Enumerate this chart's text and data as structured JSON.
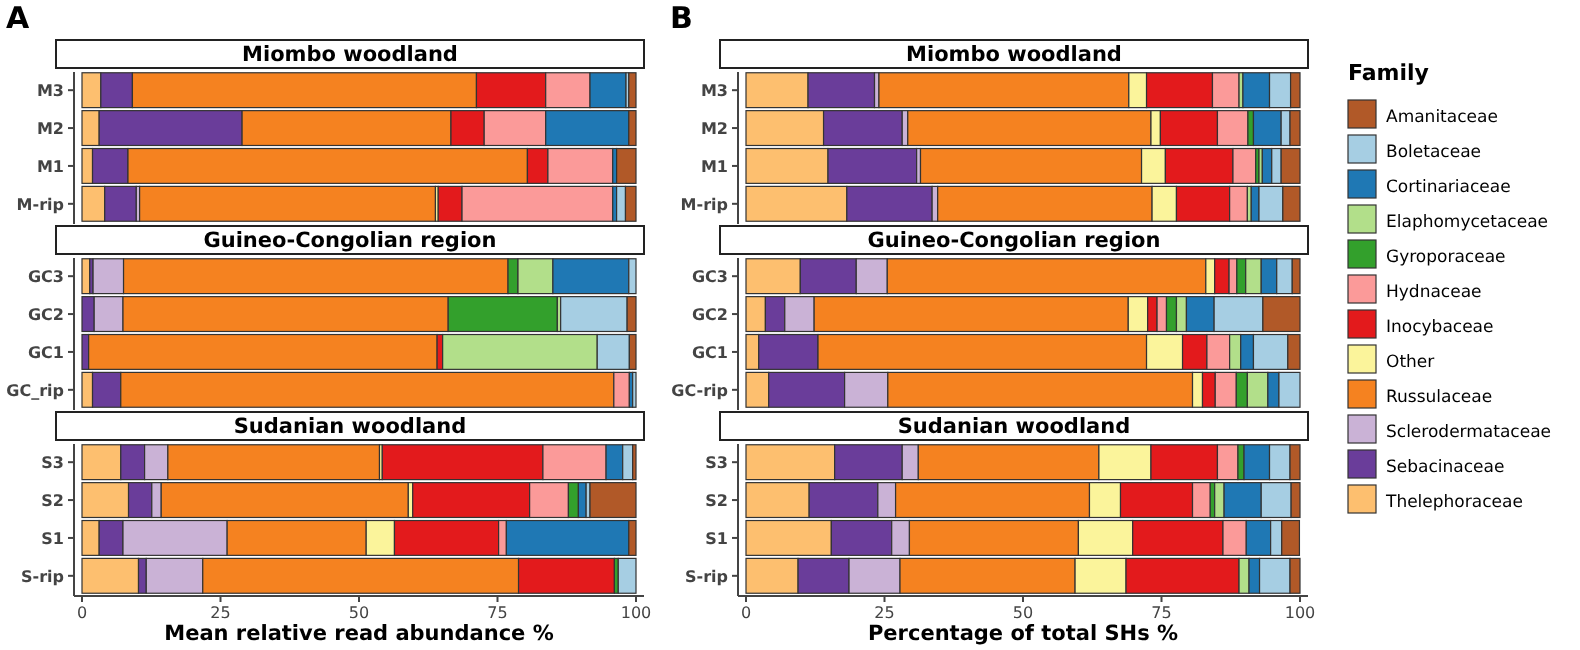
{
  "chart_data": [
    {
      "type": "bar",
      "orientation": "horizontal",
      "stacked": true,
      "title": "Miombo woodland",
      "annotations": [
        "A"
      ],
      "categories": [
        "M3",
        "M2",
        "M1",
        "M-rip"
      ],
      "xlim": [
        0,
        100
      ],
      "tick_labels": "y",
      "series": [
        {
          "color": "#fdbf6f",
          "values": [
            3.4,
            3.1,
            1.9,
            4.1
          ]
        },
        {
          "color": "#6a3d9a",
          "values": [
            5.7,
            25.8,
            6.4,
            5.7
          ]
        },
        {
          "color": "#cab2d6",
          "values": [
            0,
            0,
            0,
            0.6
          ]
        },
        {
          "color": "#f58220",
          "values": [
            62.1,
            37.7,
            72.1,
            53.4
          ]
        },
        {
          "color": "#fbf49b",
          "values": [
            0,
            0,
            0,
            0.5
          ]
        },
        {
          "color": "#e31a1c",
          "values": [
            12.5,
            6.0,
            3.7,
            4.3
          ]
        },
        {
          "color": "#fb9a99",
          "values": [
            8.0,
            11.1,
            11.7,
            27.2
          ]
        },
        {
          "color": "#1f78b4",
          "values": [
            6.5,
            15.0,
            0.7,
            0.7
          ]
        },
        {
          "color": "#a6cee3",
          "values": [
            0.5,
            0,
            0,
            1.6
          ]
        },
        {
          "color": "#b15928",
          "values": [
            1.3,
            1.3,
            3.5,
            1.9
          ]
        }
      ]
    },
    {
      "type": "bar",
      "orientation": "horizontal",
      "stacked": true,
      "title": "Guineo-Congolian region",
      "categories": [
        "GC3",
        "GC2",
        "GC1",
        "GC_rip"
      ],
      "xlim": [
        0,
        100
      ],
      "tick_labels": "y",
      "series": [
        {
          "color": "#fdbf6f",
          "values": [
            1.4,
            0,
            0,
            1.9
          ]
        },
        {
          "color": "#6a3d9a",
          "values": [
            0.6,
            2.2,
            1.2,
            5.1
          ]
        },
        {
          "color": "#cab2d6",
          "values": [
            5.5,
            5.2,
            0,
            0
          ]
        },
        {
          "color": "#f58220",
          "values": [
            69.4,
            58.7,
            62.9,
            89.0
          ]
        },
        {
          "color": "#e31a1c",
          "values": [
            0,
            0,
            1.0,
            0
          ]
        },
        {
          "color": "#fb9a99",
          "values": [
            0,
            0,
            0,
            2.8
          ]
        },
        {
          "color": "#33a02c",
          "values": [
            1.8,
            19.7,
            0,
            0
          ]
        },
        {
          "color": "#b2df8a",
          "values": [
            6.3,
            0.6,
            27.9,
            0
          ]
        },
        {
          "color": "#1f78b4",
          "values": [
            13.7,
            0,
            0,
            0.6
          ]
        },
        {
          "color": "#a6cee3",
          "values": [
            1.3,
            12.0,
            5.8,
            0.6
          ]
        },
        {
          "color": "#b15928",
          "values": [
            0,
            1.6,
            1.2,
            0
          ]
        }
      ]
    },
    {
      "type": "bar",
      "orientation": "horizontal",
      "stacked": true,
      "title": "Sudanian woodland",
      "categories": [
        "S3",
        "S2",
        "S1",
        "S-rip"
      ],
      "xlabel": "Mean relative read abundance %",
      "xlim": [
        0,
        100
      ],
      "xticks": [
        0,
        25,
        50,
        75,
        100
      ],
      "series": [
        {
          "color": "#fdbf6f",
          "values": [
            7.0,
            8.4,
            3.1,
            10.2
          ]
        },
        {
          "color": "#6a3d9a",
          "values": [
            4.3,
            4.2,
            4.3,
            1.4
          ]
        },
        {
          "color": "#cab2d6",
          "values": [
            4.2,
            1.7,
            18.8,
            10.2
          ]
        },
        {
          "color": "#f58220",
          "values": [
            38.2,
            44.6,
            25.1,
            57.0
          ]
        },
        {
          "color": "#fbf49b",
          "values": [
            0.5,
            0.8,
            5.1,
            0
          ]
        },
        {
          "color": "#e31a1c",
          "values": [
            29.0,
            21.1,
            18.8,
            17.3
          ]
        },
        {
          "color": "#fb9a99",
          "values": [
            11.4,
            7.0,
            1.4,
            0
          ]
        },
        {
          "color": "#33a02c",
          "values": [
            0,
            1.8,
            0,
            0.7
          ]
        },
        {
          "color": "#1f78b4",
          "values": [
            3.0,
            1.4,
            22.1,
            0
          ]
        },
        {
          "color": "#a6cee3",
          "values": [
            1.8,
            0.7,
            0,
            3.2
          ]
        },
        {
          "color": "#b15928",
          "values": [
            0.6,
            8.3,
            1.3,
            0
          ]
        }
      ]
    },
    {
      "type": "bar",
      "orientation": "horizontal",
      "stacked": true,
      "title": "Miombo woodland",
      "annotations": [
        "B"
      ],
      "categories": [
        "M3",
        "M2",
        "M1",
        "M-rip"
      ],
      "xlim": [
        0,
        100
      ],
      "tick_labels": "y",
      "series": [
        {
          "color": "#fdbf6f",
          "values": [
            11.2,
            14.0,
            14.8,
            18.2
          ]
        },
        {
          "color": "#6a3d9a",
          "values": [
            12.0,
            14.2,
            16.0,
            15.4
          ]
        },
        {
          "color": "#cab2d6",
          "values": [
            0.8,
            1.0,
            0.7,
            1.0
          ]
        },
        {
          "color": "#f58220",
          "values": [
            45.1,
            43.9,
            39.9,
            38.7
          ]
        },
        {
          "color": "#fbf49b",
          "values": [
            3.2,
            1.7,
            4.3,
            4.4
          ]
        },
        {
          "color": "#e31a1c",
          "values": [
            11.9,
            10.3,
            12.2,
            9.6
          ]
        },
        {
          "color": "#fb9a99",
          "values": [
            4.8,
            5.5,
            4.1,
            3.2
          ]
        },
        {
          "color": "#33a02c",
          "values": [
            0,
            1.0,
            0.6,
            0
          ]
        },
        {
          "color": "#b2df8a",
          "values": [
            0.7,
            0,
            0.6,
            0.7
          ]
        },
        {
          "color": "#1f78b4",
          "values": [
            4.8,
            5.0,
            1.7,
            1.4
          ]
        },
        {
          "color": "#a6cee3",
          "values": [
            3.8,
            1.6,
            1.7,
            4.3
          ]
        },
        {
          "color": "#b15928",
          "values": [
            1.7,
            1.8,
            3.4,
            3.1
          ]
        }
      ]
    },
    {
      "type": "bar",
      "orientation": "horizontal",
      "stacked": true,
      "title": "Guineo-Congolian region",
      "categories": [
        "GC3",
        "GC2",
        "GC1",
        "GC-rip"
      ],
      "xlim": [
        0,
        100
      ],
      "tick_labels": "y",
      "series": [
        {
          "color": "#fdbf6f",
          "values": [
            9.8,
            3.5,
            2.3,
            4.1
          ]
        },
        {
          "color": "#6a3d9a",
          "values": [
            10.1,
            3.5,
            10.7,
            13.7
          ]
        },
        {
          "color": "#cab2d6",
          "values": [
            5.6,
            5.3,
            0,
            7.8
          ]
        },
        {
          "color": "#f58220",
          "values": [
            57.5,
            56.7,
            59.3,
            55.0
          ]
        },
        {
          "color": "#fbf49b",
          "values": [
            1.6,
            3.5,
            6.5,
            1.8
          ]
        },
        {
          "color": "#e31a1c",
          "values": [
            2.6,
            1.7,
            4.4,
            2.3
          ]
        },
        {
          "color": "#fb9a99",
          "values": [
            1.4,
            1.7,
            4.1,
            3.8
          ]
        },
        {
          "color": "#33a02c",
          "values": [
            1.6,
            1.8,
            0,
            2.0
          ]
        },
        {
          "color": "#b2df8a",
          "values": [
            2.8,
            1.8,
            2.0,
            3.7
          ]
        },
        {
          "color": "#1f78b4",
          "values": [
            2.8,
            5.0,
            2.3,
            2.0
          ]
        },
        {
          "color": "#a6cee3",
          "values": [
            2.8,
            8.8,
            6.2,
            3.8
          ]
        },
        {
          "color": "#b15928",
          "values": [
            1.4,
            6.7,
            2.2,
            0
          ]
        }
      ]
    },
    {
      "type": "bar",
      "orientation": "horizontal",
      "stacked": true,
      "title": "Sudanian woodland",
      "categories": [
        "S3",
        "S2",
        "S1",
        "S-rip"
      ],
      "xlabel": "Percentage of total SHs %",
      "xlim": [
        0,
        100
      ],
      "xticks": [
        0,
        25,
        50,
        75,
        100
      ],
      "legend": "right",
      "legend_title": "Family",
      "series": [
        {
          "name": "Thelephoraceae",
          "color": "#fdbf6f",
          "values": [
            16.0,
            11.4,
            15.4,
            9.4
          ]
        },
        {
          "name": "Sebacinaceae",
          "color": "#6a3d9a",
          "values": [
            12.2,
            12.4,
            10.9,
            9.2
          ]
        },
        {
          "name": "Sclerodermataceae",
          "color": "#cab2d6",
          "values": [
            2.9,
            3.2,
            3.2,
            9.2
          ]
        },
        {
          "name": "Russulaceae",
          "color": "#f58220",
          "values": [
            32.6,
            35.0,
            30.5,
            31.6
          ]
        },
        {
          "name": "Other",
          "color": "#fbf49b",
          "values": [
            9.4,
            5.6,
            9.8,
            9.2
          ]
        },
        {
          "name": "Inocybaceae",
          "color": "#e31a1c",
          "values": [
            12.0,
            13.0,
            16.3,
            20.4
          ]
        },
        {
          "name": "Hydnaceae",
          "color": "#fb9a99",
          "values": [
            3.7,
            3.2,
            4.2,
            0
          ]
        },
        {
          "name": "Gyroporaceae",
          "color": "#33a02c",
          "values": [
            1.1,
            0.8,
            0,
            0
          ]
        },
        {
          "name": "Elaphomycetaceae",
          "color": "#b2df8a",
          "values": [
            0,
            1.7,
            0,
            1.8
          ]
        },
        {
          "name": "Cortinariaceae",
          "color": "#1f78b4",
          "values": [
            4.6,
            6.7,
            4.4,
            1.9
          ]
        },
        {
          "name": "Boletaceae",
          "color": "#a6cee3",
          "values": [
            3.7,
            5.4,
            2.0,
            5.5
          ]
        },
        {
          "name": "Amanitaceae",
          "color": "#b15928",
          "values": [
            1.8,
            1.6,
            3.2,
            1.8
          ]
        }
      ]
    }
  ]
}
